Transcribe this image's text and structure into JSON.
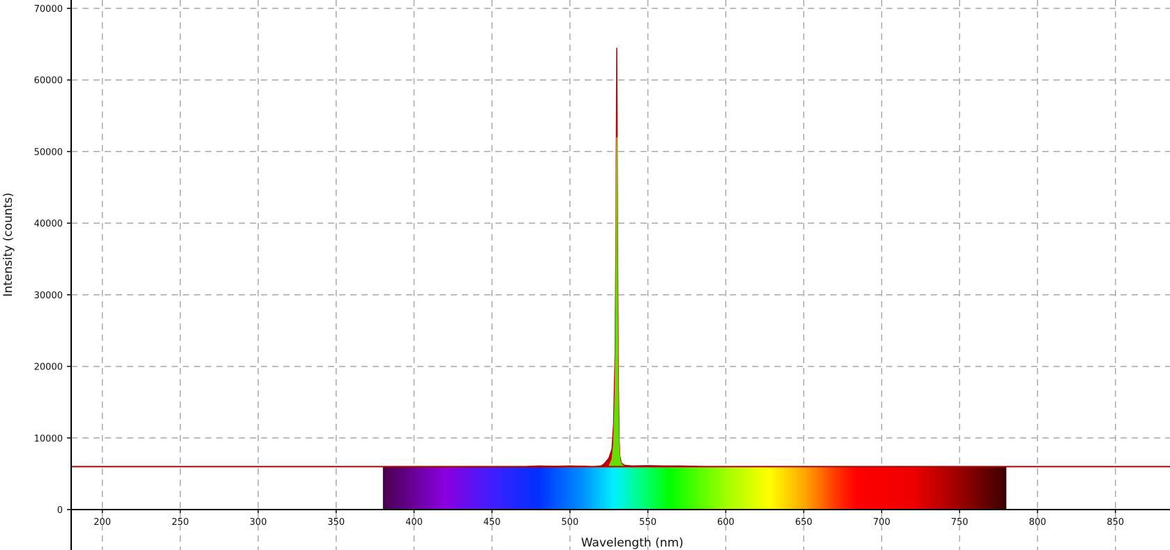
{
  "chart_data": {
    "type": "line",
    "title": "",
    "xlabel": "Wavelength (nm)",
    "ylabel": "Intensity (counts)",
    "xlim": [
      180,
      885
    ],
    "ylim": [
      0,
      70000
    ],
    "x_ticks": [
      200,
      250,
      300,
      350,
      400,
      450,
      500,
      550,
      600,
      650,
      700,
      750,
      800,
      850
    ],
    "y_ticks": [
      0,
      10000,
      20000,
      30000,
      40000,
      50000,
      60000,
      70000
    ],
    "grid": true,
    "legend": "none",
    "visible_spectrum_band": {
      "x_range": [
        380,
        780
      ],
      "y_top": 6000
    },
    "threshold_line": {
      "y": 6000,
      "color": "#b00000"
    },
    "series": [
      {
        "color": "#c00000",
        "fill": "#c00000",
        "x": [
          380,
          470,
          480,
          490,
          500,
          510,
          515,
          520,
          522,
          525,
          527,
          528,
          529,
          529.5,
          530,
          530.5,
          531,
          531.5,
          532,
          533,
          535,
          540,
          550,
          560,
          570,
          580,
          590,
          600
        ],
        "y": [
          6000,
          6000,
          6100,
          6050,
          6100,
          6050,
          6000,
          6100,
          6400,
          7200,
          8500,
          12000,
          22000,
          38000,
          64500,
          40000,
          20000,
          10000,
          7500,
          6500,
          6200,
          6100,
          6150,
          6100,
          6100,
          6050,
          6000,
          6000
        ]
      },
      {
        "color": "#66dd00",
        "fill": "#66dd00",
        "x": [
          525,
          527,
          528,
          529,
          529.5,
          530,
          530.5,
          531,
          531.5,
          532,
          533,
          535
        ],
        "y": [
          6000,
          7000,
          9000,
          16000,
          26500,
          52000,
          27000,
          12000,
          8500,
          7000,
          6300,
          6000
        ]
      }
    ]
  }
}
